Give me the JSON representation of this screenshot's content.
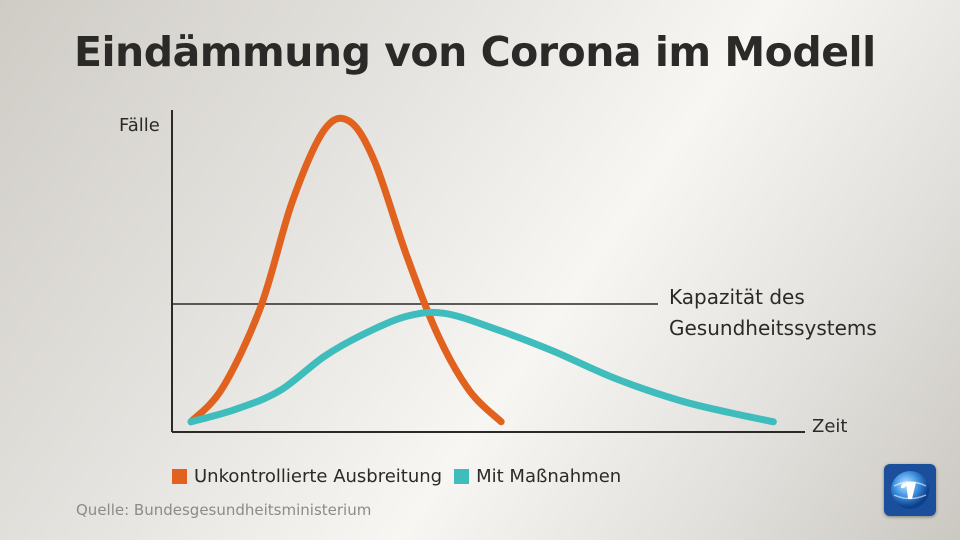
{
  "title": "Eindämmung von Corona im Modell",
  "source": "Quelle: Bundesgesundheitsministerium",
  "brand_logo_icon": "tagesschau-globe-icon",
  "chart_data": {
    "type": "line",
    "ylabel": "Fälle",
    "xlabel": "Zeit",
    "xlim": [
      0,
      100
    ],
    "ylim": [
      0,
      100
    ],
    "capacity_line": {
      "value": 40,
      "label_line1": "Kapazität des",
      "label_line2": "Gesundheitssystems"
    },
    "series": [
      {
        "name": "Unkontrollierte Ausbreitung",
        "color": "#e0621e",
        "x": [
          3,
          8,
          14,
          19,
          24,
          28,
          32,
          37,
          42,
          47,
          52
        ],
        "y": [
          2,
          13,
          39,
          73,
          96,
          99,
          86,
          56,
          30,
          12,
          2
        ]
      },
      {
        "name": "Mit Maßnahmen",
        "color": "#3fbcbc",
        "x": [
          3,
          10,
          17,
          24,
          30,
          37,
          43,
          51,
          60,
          70,
          80,
          88,
          95
        ],
        "y": [
          2,
          6,
          12,
          23,
          30,
          36,
          37,
          32,
          25,
          16,
          9,
          5,
          2
        ]
      }
    ]
  }
}
